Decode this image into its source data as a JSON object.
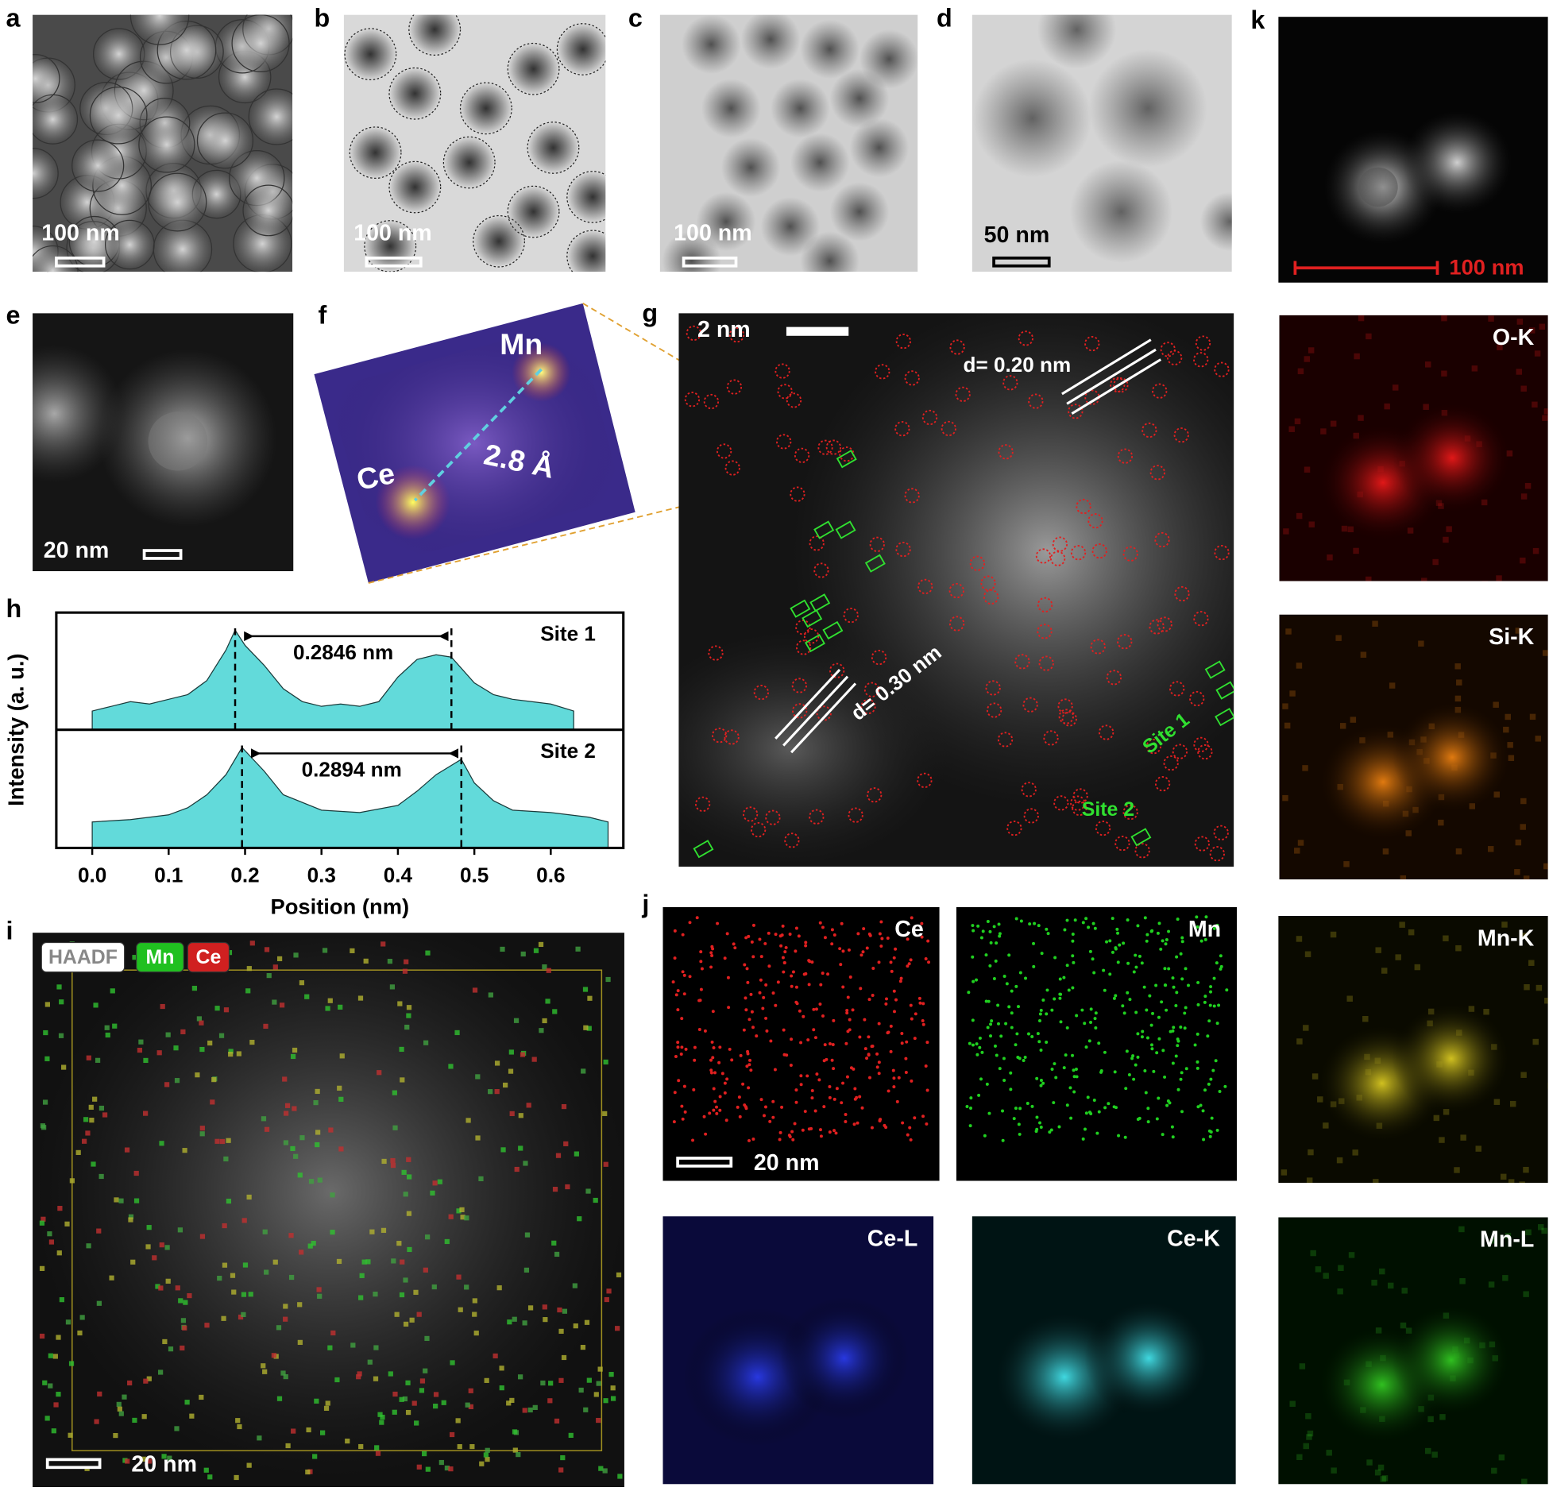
{
  "panels": {
    "a": {
      "label": "a",
      "scale_bar": "100 nm"
    },
    "b": {
      "label": "b",
      "scale_bar": "100 nm"
    },
    "c": {
      "label": "c",
      "scale_bar": "100 nm"
    },
    "d": {
      "label": "d",
      "scale_bar": "50 nm"
    },
    "e": {
      "label": "e",
      "scale_bar": "20 nm"
    },
    "f": {
      "label": "f",
      "atoms": [
        "Mn",
        "Ce"
      ],
      "distance": "2.8 Å"
    },
    "g": {
      "label": "g",
      "scale_bar": "2 nm",
      "lattice_spacings": [
        "d= 0.20 nm",
        "d= 0.30 nm"
      ],
      "sites": [
        "Site 1",
        "Site 2"
      ]
    },
    "h": {
      "label": "h",
      "type": "area",
      "xlabel": "Position (nm)",
      "ylabel": "Intensity (a. u.)",
      "xlim": [
        -0.047,
        0.695
      ],
      "xticks": [
        {
          "value": 0,
          "label": "0.0"
        },
        0.1,
        0.2,
        0.3,
        0.4,
        0.5,
        0.6
      ],
      "ylim": [
        0,
        1
      ],
      "series": [
        {
          "name": "Site 1",
          "color": "#62dada",
          "annotation": "0.2846 nm",
          "peaks": [
            0.187,
            0.47
          ],
          "x": [
            0,
            0.025,
            0.05,
            0.075,
            0.1,
            0.125,
            0.15,
            0.175,
            0.187,
            0.2,
            0.225,
            0.25,
            0.275,
            0.3,
            0.325,
            0.35,
            0.375,
            0.4,
            0.425,
            0.45,
            0.47,
            0.5,
            0.525,
            0.55,
            0.575,
            0.6,
            0.63
          ],
          "values": [
            0.16,
            0.2,
            0.24,
            0.22,
            0.26,
            0.3,
            0.42,
            0.68,
            0.85,
            0.72,
            0.55,
            0.35,
            0.24,
            0.2,
            0.22,
            0.2,
            0.24,
            0.45,
            0.6,
            0.64,
            0.62,
            0.4,
            0.3,
            0.26,
            0.24,
            0.22,
            0.16
          ]
        },
        {
          "name": "Site 2",
          "color": "#62dada",
          "annotation": "0.2894 nm",
          "peaks": [
            0.196,
            0.483
          ],
          "x": [
            0,
            0.05,
            0.1,
            0.125,
            0.15,
            0.175,
            0.196,
            0.225,
            0.25,
            0.3,
            0.35,
            0.4,
            0.425,
            0.45,
            0.483,
            0.5,
            0.525,
            0.55,
            0.6,
            0.65,
            0.675
          ],
          "values": [
            0.22,
            0.24,
            0.28,
            0.34,
            0.45,
            0.62,
            0.85,
            0.65,
            0.45,
            0.32,
            0.3,
            0.36,
            0.48,
            0.62,
            0.75,
            0.55,
            0.4,
            0.32,
            0.3,
            0.26,
            0.22
          ]
        }
      ]
    },
    "i": {
      "label": "i",
      "legend": [
        "HAADF",
        "Mn",
        "Ce"
      ],
      "scale_bar": "20 nm"
    },
    "j": {
      "label": "j",
      "maps": [
        "Ce",
        "Mn",
        "Ce-L",
        "Ce-K"
      ],
      "scale_bar": "20 nm"
    },
    "k": {
      "label": "k",
      "scale_bar": "100 nm",
      "maps": [
        "O-K",
        "Si-K",
        "Mn-K",
        "Mn-L"
      ]
    }
  }
}
